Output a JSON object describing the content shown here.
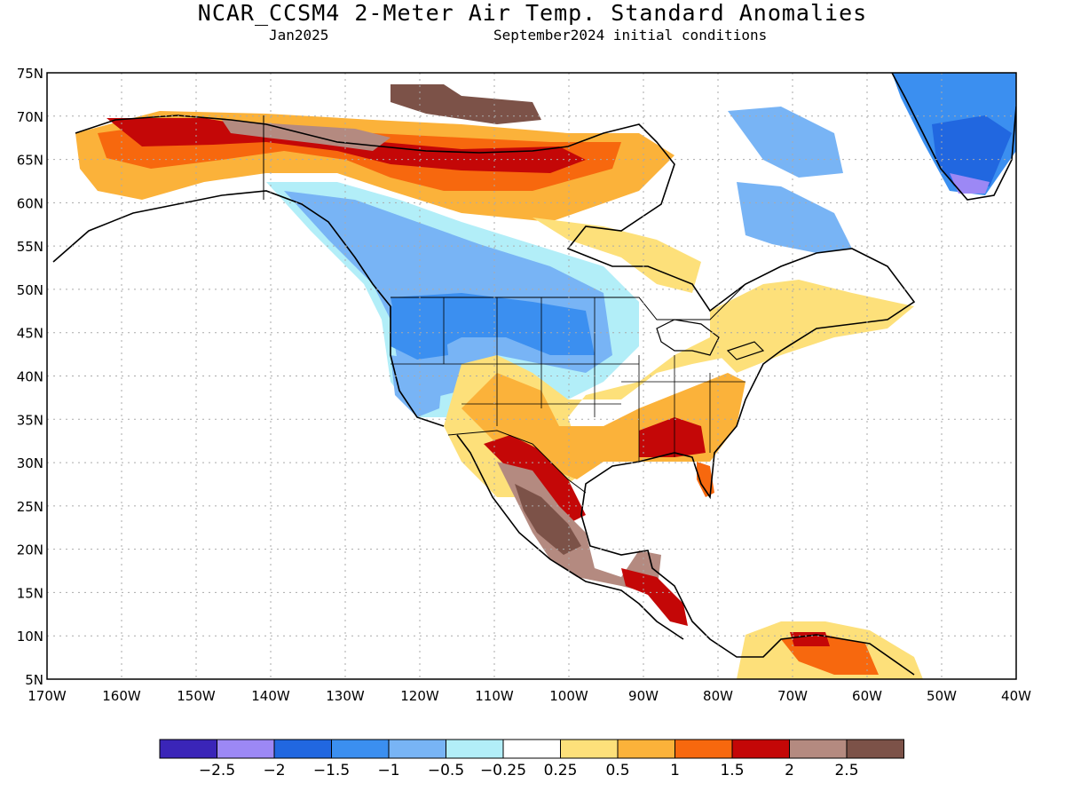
{
  "header": {
    "title": "NCAR_CCSM4 2-Meter Air Temp. Standard Anomalies",
    "valid_month": "Jan2025",
    "init": "September2024 initial conditions"
  },
  "axes": {
    "lat_labels": [
      "75N",
      "70N",
      "65N",
      "60N",
      "55N",
      "50N",
      "45N",
      "40N",
      "35N",
      "30N",
      "25N",
      "20N",
      "15N",
      "10N",
      "5N"
    ],
    "lon_labels": [
      "170W",
      "160W",
      "150W",
      "140W",
      "130W",
      "120W",
      "110W",
      "100W",
      "90W",
      "80W",
      "70W",
      "60W",
      "50W",
      "40W"
    ],
    "lat_range": [
      5,
      75
    ],
    "lon_range": [
      -170,
      -40
    ]
  },
  "colorbar": {
    "colors": [
      "#3a25b8",
      "#9c88f5",
      "#2167e0",
      "#3b8ff0",
      "#78b4f5",
      "#b2eef8",
      "#ffffff",
      "#fde07a",
      "#fbb23a",
      "#f7680e",
      "#c40707",
      "#b48a80",
      "#7c5248"
    ],
    "labels": [
      "−2.5",
      "−2",
      "−1.5",
      "−1",
      "−0.5",
      "−0.25",
      "0.25",
      "0.5",
      "1",
      "1.5",
      "2",
      "2.5"
    ]
  },
  "colors": {
    "land_outline": "#000000",
    "grid": "#aaaaaa"
  }
}
